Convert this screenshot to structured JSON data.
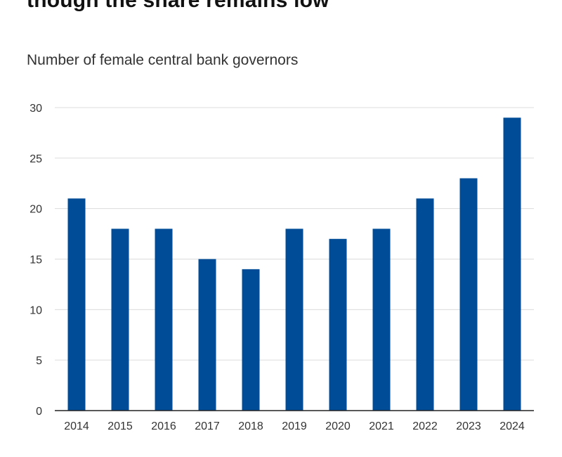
{
  "chart_data": {
    "type": "bar",
    "title": "though the share remains low",
    "subtitle": "Number of female central bank governors",
    "xlabel": "",
    "ylabel": "",
    "categories": [
      "2014",
      "2015",
      "2016",
      "2017",
      "2018",
      "2019",
      "2020",
      "2021",
      "2022",
      "2023",
      "2024"
    ],
    "values": [
      21,
      18,
      18,
      15,
      14,
      18,
      17,
      18,
      21,
      23,
      29
    ],
    "ylim": [
      0,
      30
    ],
    "yticks": [
      0,
      5,
      10,
      15,
      20,
      25,
      30
    ],
    "grid": true,
    "bar_color": "#004c97"
  }
}
